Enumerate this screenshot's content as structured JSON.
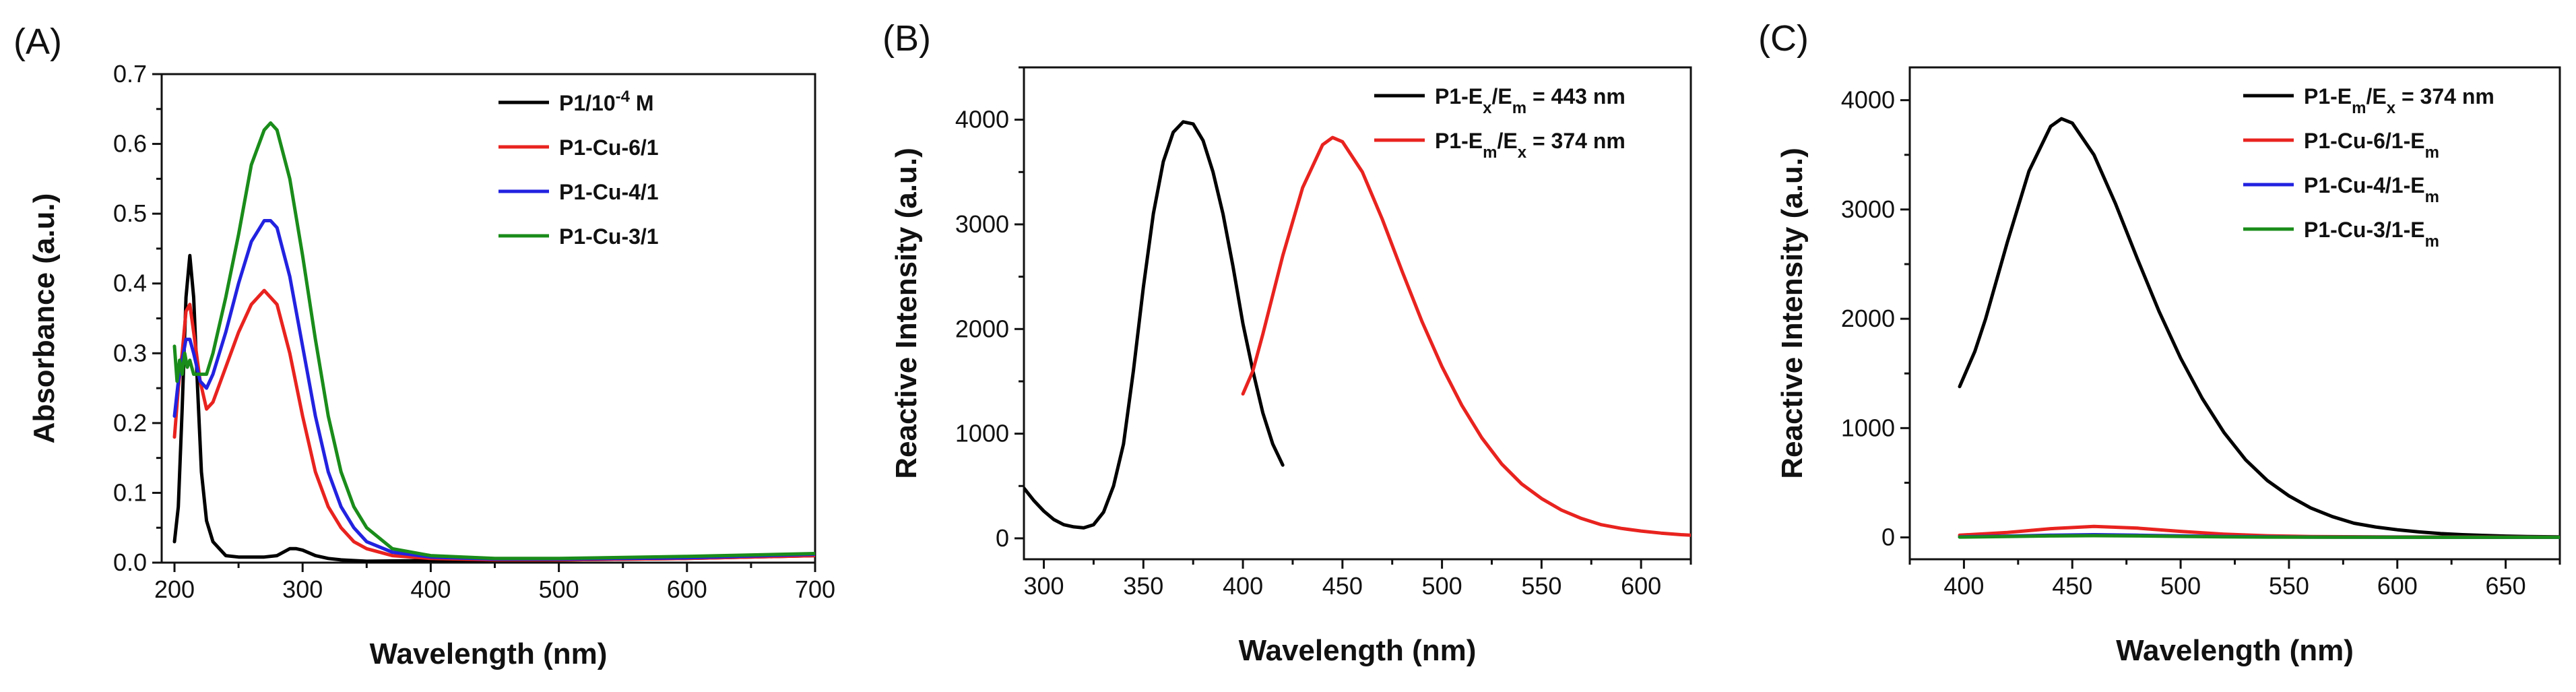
{
  "chart_data": [
    {
      "panel_label": "(A)",
      "type": "line",
      "title": "",
      "xlabel": "Wavelength (nm)",
      "ylabel": "Absorbance (a.u.)",
      "xlim": [
        190,
        700
      ],
      "ylim": [
        0.0,
        0.7
      ],
      "xticks": [
        200,
        300,
        400,
        500,
        600,
        700
      ],
      "yticks": [
        0.0,
        0.1,
        0.2,
        0.3,
        0.4,
        0.5,
        0.6,
        0.7
      ],
      "ytick_decimals": 1,
      "legend_position": "top-right",
      "series": [
        {
          "name": "P1/10",
          "name_sup": "-4",
          "name_tail": " M",
          "color": "#000000",
          "x": [
            200,
            203,
            206,
            209,
            212,
            215,
            218,
            221,
            225,
            230,
            240,
            250,
            260,
            270,
            280,
            290,
            295,
            300,
            310,
            320,
            330,
            350,
            400,
            500,
            600,
            700
          ],
          "y": [
            0.03,
            0.08,
            0.22,
            0.38,
            0.44,
            0.38,
            0.25,
            0.13,
            0.06,
            0.03,
            0.01,
            0.008,
            0.008,
            0.008,
            0.01,
            0.02,
            0.02,
            0.018,
            0.01,
            0.006,
            0.004,
            0.002,
            0.003,
            0.004,
            0.006,
            0.01
          ]
        },
        {
          "name": "P1-Cu-6/1",
          "color": "#e8231f",
          "x": [
            200,
            203,
            206,
            209,
            212,
            215,
            220,
            225,
            230,
            240,
            250,
            260,
            270,
            280,
            290,
            300,
            310,
            320,
            330,
            340,
            350,
            370,
            400,
            450,
            500,
            600,
            700
          ],
          "y": [
            0.18,
            0.25,
            0.3,
            0.36,
            0.37,
            0.33,
            0.26,
            0.22,
            0.23,
            0.28,
            0.33,
            0.37,
            0.39,
            0.37,
            0.3,
            0.21,
            0.13,
            0.08,
            0.05,
            0.03,
            0.02,
            0.01,
            0.006,
            0.004,
            0.004,
            0.006,
            0.01
          ]
        },
        {
          "name": "P1-Cu-4/1",
          "color": "#2222e0",
          "x": [
            200,
            203,
            206,
            209,
            212,
            215,
            220,
            225,
            230,
            240,
            250,
            260,
            270,
            275,
            280,
            290,
            300,
            310,
            320,
            330,
            340,
            350,
            370,
            400,
            450,
            500,
            600,
            700
          ],
          "y": [
            0.21,
            0.26,
            0.29,
            0.32,
            0.32,
            0.3,
            0.26,
            0.25,
            0.27,
            0.33,
            0.4,
            0.46,
            0.49,
            0.49,
            0.48,
            0.41,
            0.31,
            0.21,
            0.13,
            0.08,
            0.05,
            0.03,
            0.015,
            0.008,
            0.005,
            0.005,
            0.007,
            0.012
          ]
        },
        {
          "name": "P1-Cu-3/1",
          "color": "#1a8c1a",
          "x": [
            200,
            202,
            204,
            206,
            208,
            210,
            212,
            215,
            220,
            225,
            230,
            240,
            250,
            260,
            270,
            275,
            280,
            290,
            300,
            310,
            320,
            330,
            340,
            350,
            370,
            400,
            450,
            500,
            600,
            700
          ],
          "y": [
            0.31,
            0.26,
            0.29,
            0.27,
            0.3,
            0.28,
            0.29,
            0.27,
            0.27,
            0.27,
            0.3,
            0.38,
            0.47,
            0.57,
            0.62,
            0.63,
            0.62,
            0.55,
            0.44,
            0.32,
            0.21,
            0.13,
            0.08,
            0.05,
            0.02,
            0.01,
            0.006,
            0.006,
            0.009,
            0.013
          ]
        }
      ]
    },
    {
      "panel_label": "(B)",
      "type": "line",
      "title": "",
      "xlabel": "Wavelength (nm)",
      "ylabel": "Reactive Intensity (a.u.)",
      "xlim": [
        290,
        625
      ],
      "ylim": [
        -200,
        4500
      ],
      "xticks": [
        300,
        350,
        400,
        450,
        500,
        550,
        600
      ],
      "yticks": [
        0,
        1000,
        2000,
        3000,
        4000
      ],
      "ytick_decimals": 0,
      "legend_position": "top-right",
      "series": [
        {
          "name": "P1-E",
          "name_sub": "x",
          "name_mid": "/E",
          "name_sub2": "m",
          "name_tail": " = 443 nm",
          "color": "#000000",
          "x": [
            290,
            295,
            300,
            305,
            310,
            315,
            320,
            325,
            330,
            335,
            340,
            345,
            350,
            355,
            360,
            365,
            370,
            375,
            380,
            385,
            390,
            395,
            400,
            405,
            410,
            415,
            420
          ],
          "y": [
            480,
            360,
            260,
            180,
            130,
            110,
            100,
            130,
            250,
            500,
            900,
            1600,
            2400,
            3100,
            3600,
            3880,
            3980,
            3960,
            3800,
            3500,
            3100,
            2600,
            2050,
            1600,
            1200,
            900,
            700
          ]
        },
        {
          "name": "P1-E",
          "name_sub": "m",
          "name_mid": "/E",
          "name_sub2": "x",
          "name_tail": " = 374 nm",
          "color": "#e8231f",
          "x": [
            400,
            405,
            410,
            420,
            430,
            440,
            445,
            450,
            460,
            470,
            480,
            490,
            500,
            510,
            520,
            530,
            540,
            550,
            560,
            570,
            580,
            590,
            600,
            610,
            620,
            625
          ],
          "y": [
            1380,
            1600,
            1950,
            2700,
            3350,
            3760,
            3830,
            3790,
            3500,
            3050,
            2550,
            2070,
            1640,
            1270,
            960,
            710,
            520,
            380,
            270,
            190,
            130,
            95,
            70,
            50,
            35,
            30
          ]
        }
      ]
    },
    {
      "panel_label": "(C)",
      "type": "line",
      "title": "",
      "xlabel": "Wavelength (nm)",
      "ylabel": "Reactive Intensity (a.u.)",
      "xlim": [
        375,
        675
      ],
      "ylim": [
        -200,
        4300
      ],
      "xticks": [
        400,
        450,
        500,
        550,
        600,
        650
      ],
      "yticks": [
        0,
        1000,
        2000,
        3000,
        4000
      ],
      "ytick_decimals": 0,
      "legend_position": "top-right",
      "series": [
        {
          "name": "P1-E",
          "name_sub": "m",
          "name_mid": "/E",
          "name_sub2": "x",
          "name_tail": " = 374 nm",
          "color": "#000000",
          "x": [
            398,
            405,
            410,
            420,
            430,
            440,
            445,
            450,
            460,
            470,
            480,
            490,
            500,
            510,
            520,
            530,
            540,
            550,
            560,
            570,
            580,
            590,
            600,
            610,
            620,
            630,
            640,
            650,
            660,
            675
          ],
          "y": [
            1380,
            1700,
            2000,
            2700,
            3350,
            3760,
            3830,
            3790,
            3500,
            3050,
            2550,
            2070,
            1640,
            1270,
            960,
            710,
            520,
            380,
            270,
            190,
            130,
            95,
            70,
            50,
            35,
            25,
            18,
            12,
            8,
            5
          ]
        },
        {
          "name": "P1-Cu-6/1-E",
          "name_sub": "m",
          "color": "#e8231f",
          "x": [
            398,
            420,
            440,
            460,
            480,
            500,
            520,
            540,
            560,
            600,
            650,
            675
          ],
          "y": [
            20,
            45,
            80,
            100,
            85,
            55,
            30,
            15,
            8,
            4,
            3,
            2
          ]
        },
        {
          "name": "P1-Cu-4/1-E",
          "name_sub": "m",
          "color": "#2222e0",
          "x": [
            398,
            420,
            440,
            460,
            480,
            500,
            520,
            540,
            560,
            600,
            650,
            675
          ],
          "y": [
            5,
            12,
            20,
            25,
            20,
            14,
            8,
            5,
            3,
            2,
            1,
            1
          ]
        },
        {
          "name": "P1-Cu-3/1-E",
          "name_sub": "m",
          "color": "#1a8c1a",
          "x": [
            398,
            420,
            440,
            460,
            480,
            500,
            520,
            540,
            560,
            600,
            650,
            675
          ],
          "y": [
            3,
            8,
            13,
            16,
            13,
            9,
            5,
            3,
            2,
            1,
            1,
            1
          ]
        }
      ]
    }
  ]
}
